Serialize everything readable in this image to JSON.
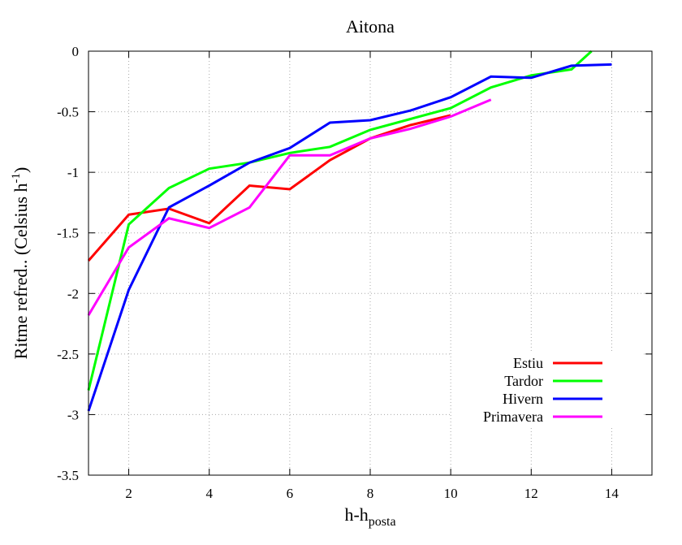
{
  "chart_data": {
    "type": "line",
    "title": "Aitona",
    "xlabel": {
      "main": "h-h",
      "sub": "posta"
    },
    "ylabel": {
      "main": "Ritme refred.. (Celsius h",
      "sup": "-1",
      "end": ")"
    },
    "xlim": [
      1,
      15
    ],
    "ylim": [
      -3.5,
      0
    ],
    "xticks": [
      2,
      4,
      6,
      8,
      10,
      12,
      14
    ],
    "yticks": [
      0,
      -0.5,
      -1,
      -1.5,
      -2,
      -2.5,
      -3,
      -3.5
    ],
    "ytick_labels": [
      "0",
      "-0.5",
      "-1",
      "-1.5",
      "-2",
      "-2.5",
      "-3",
      "-3.5"
    ],
    "grid": true,
    "legend_position": "bottom-right",
    "series": [
      {
        "name": "Estiu",
        "color": "#ff0000",
        "x": [
          1,
          2,
          3,
          4,
          5,
          6,
          7,
          8,
          9,
          10
        ],
        "y": [
          -1.73,
          -1.35,
          -1.3,
          -1.42,
          -1.11,
          -1.14,
          -0.9,
          -0.72,
          -0.61,
          -0.53
        ]
      },
      {
        "name": "Tardor",
        "color": "#00ff00",
        "x": [
          1,
          2,
          3,
          4,
          5,
          6,
          7,
          8,
          9,
          10,
          11,
          12,
          13,
          13.5
        ],
        "y": [
          -2.8,
          -1.43,
          -1.13,
          -0.97,
          -0.92,
          -0.84,
          -0.79,
          -0.65,
          -0.56,
          -0.47,
          -0.3,
          -0.2,
          -0.15,
          0
        ]
      },
      {
        "name": "Hivern",
        "color": "#0000ff",
        "x": [
          1,
          2,
          3,
          4,
          5,
          6,
          7,
          8,
          9,
          10,
          11,
          12,
          13,
          14
        ],
        "y": [
          -2.97,
          -1.97,
          -1.29,
          -1.11,
          -0.92,
          -0.8,
          -0.59,
          -0.57,
          -0.49,
          -0.38,
          -0.21,
          -0.22,
          -0.12,
          -0.11
        ]
      },
      {
        "name": "Primavera",
        "color": "#ff00ff",
        "x": [
          1,
          2,
          3,
          4,
          5,
          6,
          7,
          8,
          9,
          10,
          11
        ],
        "y": [
          -2.18,
          -1.62,
          -1.38,
          -1.46,
          -1.29,
          -0.86,
          -0.86,
          -0.72,
          -0.64,
          -0.54,
          -0.4
        ]
      }
    ]
  }
}
